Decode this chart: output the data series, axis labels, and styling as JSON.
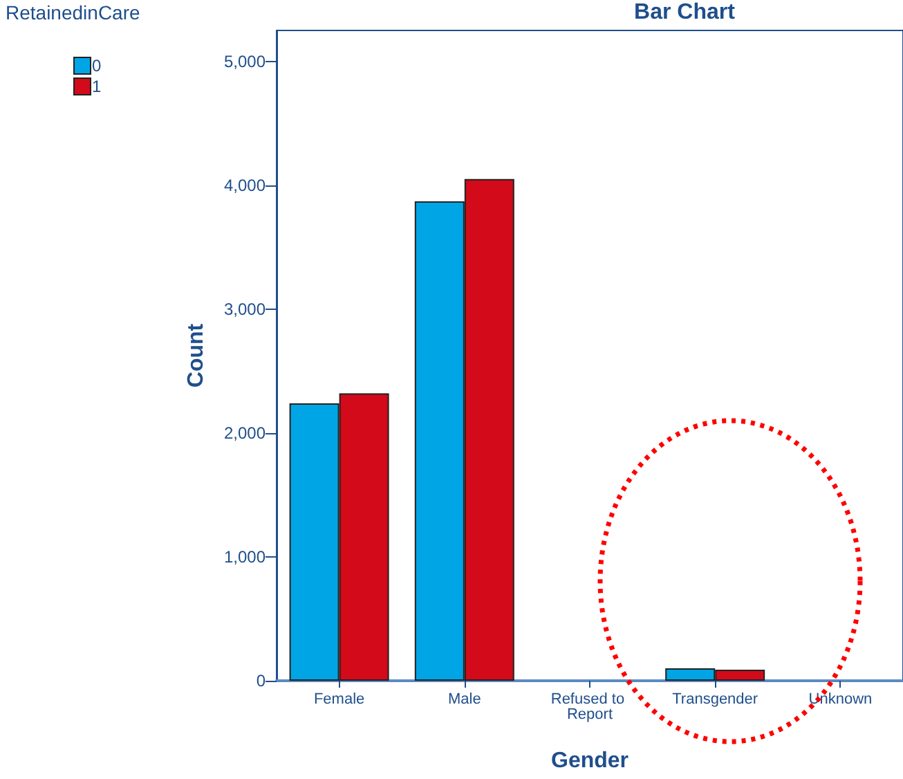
{
  "chart_data": {
    "type": "bar",
    "title": "Bar Chart",
    "xlabel": "Gender",
    "ylabel": "Count",
    "legend_title": "RetainedinCare",
    "categories": [
      "Female",
      "Male",
      "Refused to Report",
      "Transgender",
      "Unknown"
    ],
    "series": [
      {
        "name": "0",
        "color": "#00a5e6",
        "values": [
          2240,
          3870,
          null,
          100,
          null
        ]
      },
      {
        "name": "1",
        "color": "#d20a19",
        "values": [
          2320,
          4050,
          null,
          90,
          null
        ]
      }
    ],
    "ylim": [
      0,
      5250
    ],
    "yticks": [
      0,
      {
        "value": 1000,
        "label": "1,000"
      },
      {
        "value": 2000,
        "label": "2,000"
      },
      {
        "value": 3000,
        "label": "3,000"
      },
      {
        "value": 4000,
        "label": "4,000"
      },
      {
        "value": 5000,
        "label": "5,000"
      }
    ],
    "grid": false,
    "legend": "top left"
  }
}
